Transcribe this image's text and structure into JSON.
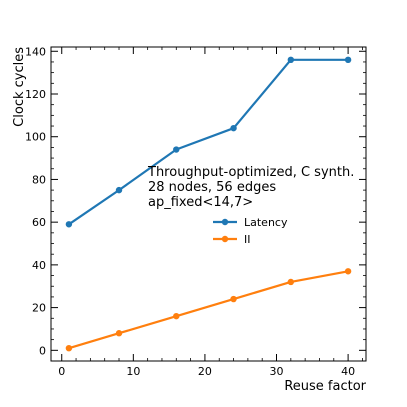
{
  "chart_data": {
    "type": "line",
    "x": [
      1,
      8,
      16,
      24,
      32,
      40
    ],
    "series": [
      {
        "name": "Latency",
        "values": [
          59,
          75,
          94,
          104,
          136,
          136
        ],
        "color": "#1f77b4"
      },
      {
        "name": "II",
        "values": [
          1,
          8,
          16,
          24,
          32,
          37
        ],
        "color": "#ff7f0e"
      }
    ],
    "title": "",
    "xlabel": "Reuse factor",
    "ylabel": "Clock cycles",
    "xlim": [
      -1.5,
      42.5
    ],
    "ylim": [
      -5,
      142
    ],
    "xticks": [
      0,
      10,
      20,
      30,
      40
    ],
    "yticks": [
      0,
      20,
      40,
      60,
      80,
      100,
      120,
      140
    ],
    "xticks_minor_step": 2,
    "yticks_minor_step": 5,
    "annotation": [
      "Throughput-optimized, C synth.",
      "28 nodes, 56 edges",
      "ap_fixed<14,7>"
    ],
    "legend_position": "center-right",
    "grid": false
  }
}
